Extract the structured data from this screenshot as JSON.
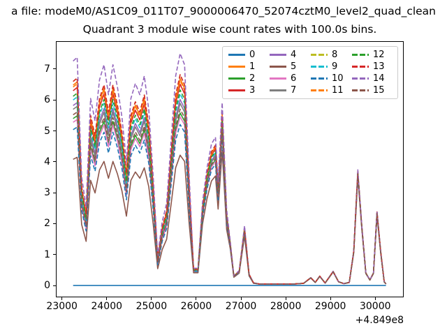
{
  "figure": {
    "suptitle_visible": "a file: modeM0/AS1C09_011T07_9000006470_52074cztM0_level2_quad_clean",
    "axes_title": "Quadrant 3 module wise count rates with 100.0s bins."
  },
  "chart_data": {
    "type": "line",
    "title": "Quadrant 3 module wise count rates with 100.0s bins.",
    "xlabel": "",
    "ylabel": "",
    "x_axis_offset_label": "+4.849e8",
    "xlim": [
      22880,
      30620
    ],
    "ylim": [
      -0.36,
      7.88
    ],
    "x_ticks": [
      23000,
      24000,
      25000,
      26000,
      27000,
      28000,
      29000,
      30000
    ],
    "y_ticks": [
      0,
      1,
      2,
      3,
      4,
      5,
      6,
      7
    ],
    "grid": false,
    "legend_position": "upper right",
    "legend_columns": 4,
    "x": [
      23250,
      23340,
      23440,
      23540,
      23640,
      23740,
      23840,
      23940,
      24040,
      24140,
      24240,
      24340,
      24440,
      24540,
      24640,
      24740,
      24840,
      24940,
      25040,
      25140,
      25240,
      25340,
      25440,
      25540,
      25640,
      25740,
      25840,
      25940,
      26040,
      26140,
      26240,
      26340,
      26430,
      26490,
      26580,
      26680,
      26760,
      26840,
      26960,
      27080,
      27180,
      27280,
      27400,
      27600,
      27800,
      28000,
      28200,
      28400,
      28560,
      28660,
      28760,
      28880,
      29060,
      29180,
      29300,
      29420,
      29520,
      29610,
      29700,
      29790,
      29880,
      29960,
      30040,
      30120,
      30200,
      30240
    ],
    "base_profile": [
      6.0,
      6.1,
      2.9,
      2.1,
      5.0,
      4.4,
      5.5,
      5.9,
      5.1,
      5.9,
      5.3,
      4.5,
      3.3,
      5.0,
      5.4,
      5.1,
      5.6,
      4.7,
      2.9,
      0.8,
      1.7,
      2.2,
      3.9,
      5.6,
      6.2,
      5.9,
      3.0,
      0.5,
      0.5,
      2.4,
      3.4,
      4.1,
      4.3,
      3.0,
      5.3,
      2.2,
      1.35,
      0.3,
      0.45,
      1.8,
      0.35,
      0.08,
      0.05,
      0.05,
      0.05,
      0.05,
      0.05,
      0.07,
      0.25,
      0.1,
      0.3,
      0.08,
      0.45,
      0.12,
      0.06,
      0.1,
      1.1,
      3.65,
      1.9,
      0.4,
      0.18,
      0.4,
      2.35,
      1.1,
      0.12,
      0.05
    ],
    "module_spread_weight": [
      1,
      1,
      1,
      1,
      1,
      1,
      1,
      1,
      1,
      1,
      1,
      1,
      1,
      1,
      1,
      1,
      1,
      1,
      1,
      1,
      1,
      1,
      1,
      1,
      1,
      1,
      1,
      0.55,
      0.55,
      0.55,
      0.55,
      0.55,
      0.55,
      0.55,
      0.55,
      0.55,
      0.35,
      0.35,
      0.35,
      0.35,
      0.35,
      0.35,
      0.12,
      0.12,
      0.12,
      0.12,
      0.12,
      0.12,
      0.12,
      0.12,
      0.12,
      0.12,
      0.12,
      0.12,
      0.12,
      0.12,
      0.12,
      0.12,
      0.12,
      0.12,
      0.12,
      0.12,
      0.12,
      0.12,
      0.12,
      0.12
    ],
    "series": [
      {
        "name": "0",
        "color": "#1f77b4",
        "linestyle": "solid",
        "scale": 0,
        "flat_zero": true
      },
      {
        "name": "1",
        "color": "#ff7f0e",
        "linestyle": "solid",
        "scale": 1.08
      },
      {
        "name": "2",
        "color": "#2ca02c",
        "linestyle": "solid",
        "scale": 0.9
      },
      {
        "name": "3",
        "color": "#d62728",
        "linestyle": "solid",
        "scale": 1.05
      },
      {
        "name": "4",
        "color": "#9467bd",
        "linestyle": "solid",
        "scale": 0.97
      },
      {
        "name": "5",
        "color": "#8c564b",
        "linestyle": "solid",
        "scale": 0.68
      },
      {
        "name": "6",
        "color": "#e377c2",
        "linestyle": "solid",
        "scale": 0.88
      },
      {
        "name": "7",
        "color": "#7f7f7f",
        "linestyle": "solid",
        "scale": 0.95
      },
      {
        "name": "8",
        "color": "#bcbd22",
        "linestyle": "dashed",
        "scale": 1.1
      },
      {
        "name": "9",
        "color": "#17becf",
        "linestyle": "dashed",
        "scale": 1.0
      },
      {
        "name": "10",
        "color": "#1f77b4",
        "linestyle": "dashed",
        "scale": 0.84
      },
      {
        "name": "11",
        "color": "#ff7f0e",
        "linestyle": "dashed",
        "scale": 1.07
      },
      {
        "name": "12",
        "color": "#2ca02c",
        "linestyle": "dashed",
        "scale": 1.02
      },
      {
        "name": "13",
        "color": "#d62728",
        "linestyle": "dashed",
        "scale": 1.1
      },
      {
        "name": "14",
        "color": "#9467bd",
        "linestyle": "dashed",
        "scale": 1.21
      },
      {
        "name": "15",
        "color": "#8c564b",
        "linestyle": "dashed",
        "scale": 0.92
      }
    ]
  }
}
